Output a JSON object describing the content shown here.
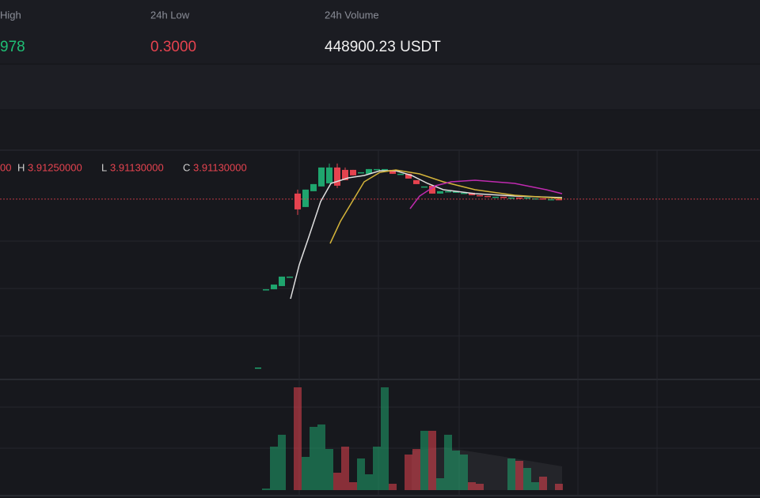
{
  "header": {
    "high_label": "High",
    "high_value": "978",
    "low_label": "24h Low",
    "low_value": "0.3000",
    "volume_label": "24h Volume",
    "volume_value": "448900.23 USDT"
  },
  "ohlc": {
    "open_tail": "00",
    "h_label": "H",
    "h_value": "3.91250000",
    "l_label": "L",
    "l_value": "3.91130000",
    "c_label": "C",
    "c_value": "3.91130000"
  },
  "chart_data": {
    "type": "candlestick",
    "ylim": [
      0.08,
      4.96
    ],
    "vlim": [
      0,
      140
    ],
    "up_color": "#1fa56e",
    "down_color": "#e5434f",
    "candles": [
      {
        "o": 0.301,
        "h": 0.301,
        "l": 0.301,
        "c": 0.301,
        "v": null
      },
      {
        "o": 1.962,
        "h": 1.979,
        "l": 1.962,
        "c": 1.979,
        "v": 2
      },
      {
        "o": 1.979,
        "h": 2.08,
        "l": 1.979,
        "c": 2.08,
        "v": 55
      },
      {
        "o": 2.047,
        "h": 2.25,
        "l": 2.047,
        "c": 2.25,
        "v": 70
      },
      {
        "o": 2.233,
        "h": 2.25,
        "l": 2.233,
        "c": 2.25,
        "v": null
      },
      {
        "o": 4.03,
        "h": 4.115,
        "l": 3.572,
        "c": 3.691,
        "v": 130
      },
      {
        "o": 3.742,
        "h": 4.115,
        "l": 3.742,
        "c": 4.115,
        "v": 42
      },
      {
        "o": 4.081,
        "h": 4.233,
        "l": 4.081,
        "c": 4.233,
        "v": 80
      },
      {
        "o": 4.183,
        "h": 4.589,
        "l": 4.183,
        "c": 4.589,
        "v": 83
      },
      {
        "o": 4.25,
        "h": 4.674,
        "l": 4.25,
        "c": 4.589,
        "v": 52
      },
      {
        "o": 4.589,
        "h": 4.674,
        "l": 4.149,
        "c": 4.199,
        "v": 22
      },
      {
        "o": 4.538,
        "h": 4.589,
        "l": 4.318,
        "c": 4.318,
        "v": 55
      },
      {
        "o": 4.538,
        "h": 4.538,
        "l": 4.42,
        "c": 4.42,
        "v": 10
      },
      {
        "o": 4.487,
        "h": 4.487,
        "l": 4.487,
        "c": 4.487,
        "v": 40
      },
      {
        "o": 4.454,
        "h": 4.555,
        "l": 4.454,
        "c": 4.555,
        "v": 20
      },
      {
        "o": 4.555,
        "h": 4.555,
        "l": 4.555,
        "c": 4.555,
        "v": 55
      },
      {
        "o": 4.555,
        "h": 4.555,
        "l": 4.555,
        "c": 4.555,
        "v": 130
      },
      {
        "o": 4.538,
        "h": 4.538,
        "l": 4.454,
        "c": 4.454,
        "v": 8
      },
      {
        "o": 4.454,
        "h": 4.454,
        "l": 4.454,
        "c": 4.454,
        "v": null
      },
      {
        "o": 4.454,
        "h": 4.454,
        "l": 4.352,
        "c": 4.352,
        "v": 45
      },
      {
        "o": 4.318,
        "h": 4.318,
        "l": 4.233,
        "c": 4.233,
        "v": 52
      },
      {
        "o": 4.183,
        "h": 4.183,
        "l": 4.183,
        "c": 4.183,
        "v": 75
      },
      {
        "o": 4.199,
        "h": 4.199,
        "l": 4.03,
        "c": 4.03,
        "v": 75
      },
      {
        "o": 4.03,
        "h": 4.081,
        "l": 4.03,
        "c": 4.081,
        "v": 15
      },
      {
        "o": 4.081,
        "h": 4.081,
        "l": 4.081,
        "c": 4.081,
        "v": 70
      },
      {
        "o": 4.047,
        "h": 4.081,
        "l": 4.047,
        "c": 4.081,
        "v": 50
      },
      {
        "o": 4.047,
        "h": 4.047,
        "l": 4.047,
        "c": 4.047,
        "v": 45
      },
      {
        "o": 4.047,
        "h": 4.047,
        "l": 3.996,
        "c": 3.996,
        "v": 10
      },
      {
        "o": 3.996,
        "h": 3.996,
        "l": 3.979,
        "c": 3.979,
        "v": 8
      },
      {
        "o": 3.979,
        "h": 3.979,
        "l": 3.962,
        "c": 3.962,
        "v": null
      },
      {
        "o": 3.962,
        "h": 3.962,
        "l": 3.962,
        "c": 3.962,
        "v": null
      },
      {
        "o": 3.962,
        "h": 3.962,
        "l": 3.945,
        "c": 3.945,
        "v": null
      },
      {
        "o": 3.945,
        "h": 3.945,
        "l": 3.945,
        "c": 3.945,
        "v": 40
      },
      {
        "o": 3.945,
        "h": 3.945,
        "l": 3.928,
        "c": 3.928,
        "v": 37
      },
      {
        "o": 3.928,
        "h": 3.945,
        "l": 3.928,
        "c": 3.945,
        "v": 28
      },
      {
        "o": 3.928,
        "h": 3.928,
        "l": 3.928,
        "c": 3.928,
        "v": 10
      },
      {
        "o": 3.928,
        "h": 3.928,
        "l": 3.911,
        "c": 3.911,
        "v": 17
      },
      {
        "o": 3.911,
        "h": 3.911,
        "l": 3.911,
        "c": 3.911,
        "v": null
      },
      {
        "o": 3.9125,
        "h": 3.9125,
        "l": 3.9113,
        "c": 3.9113,
        "v": 8
      }
    ]
  }
}
